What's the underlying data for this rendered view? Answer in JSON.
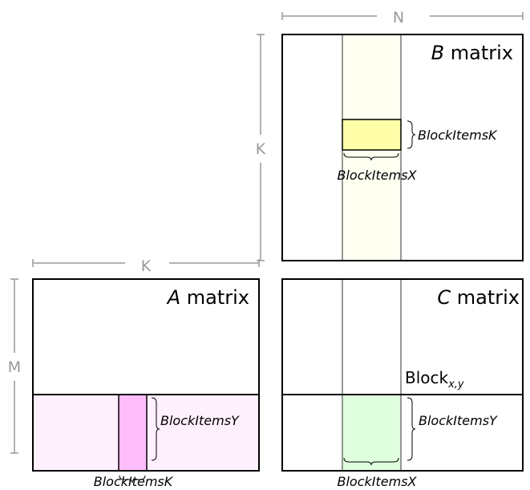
{
  "axes": {
    "n_label": "N",
    "k_label_b": "K",
    "k_label_a": "K",
    "m_label": "M"
  },
  "b_matrix": {
    "title_var": "B",
    "title_word": " matrix",
    "label_k": "BlockItemsK",
    "label_x": "BlockItemsX"
  },
  "a_matrix": {
    "title_var": "A",
    "title_word": " matrix",
    "label_y": "BlockItemsY",
    "label_k": "BlockItemsK"
  },
  "c_matrix": {
    "title_var": "C",
    "title_word": " matrix",
    "block_label": "Block",
    "block_subscript": "x,y",
    "label_y": "BlockItemsY",
    "label_x": "BlockItemsX"
  },
  "colors": {
    "b_column": "#fffff2",
    "b_tile": "#ffffaa",
    "a_row": "#fff0fd",
    "a_tile": "#ffbdfb",
    "c_tile": "#e0ffdf",
    "axis": "#999999"
  }
}
